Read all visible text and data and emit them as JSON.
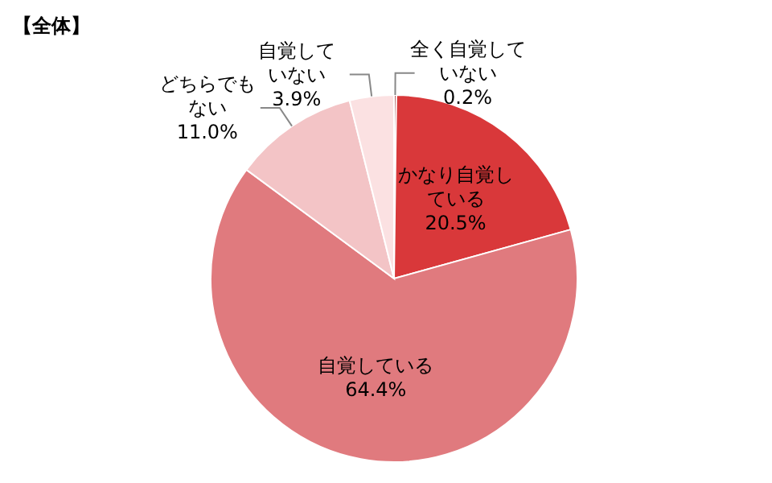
{
  "chart_data": {
    "type": "pie",
    "title": "【全体】",
    "categories": [
      "全く自覚していない",
      "かなり自覚している",
      "自覚している",
      "どちらでもない",
      "自覚していない"
    ],
    "values": [
      0.2,
      20.5,
      64.4,
      11.0,
      3.9
    ],
    "value_labels": [
      "0.2%",
      "20.5%",
      "64.4%",
      "11.0%",
      "3.9%"
    ],
    "colors": [
      "#8b1a1a",
      "#d9383a",
      "#e07a7e",
      "#f3c4c6",
      "#fbe1e2"
    ],
    "legend": false
  }
}
